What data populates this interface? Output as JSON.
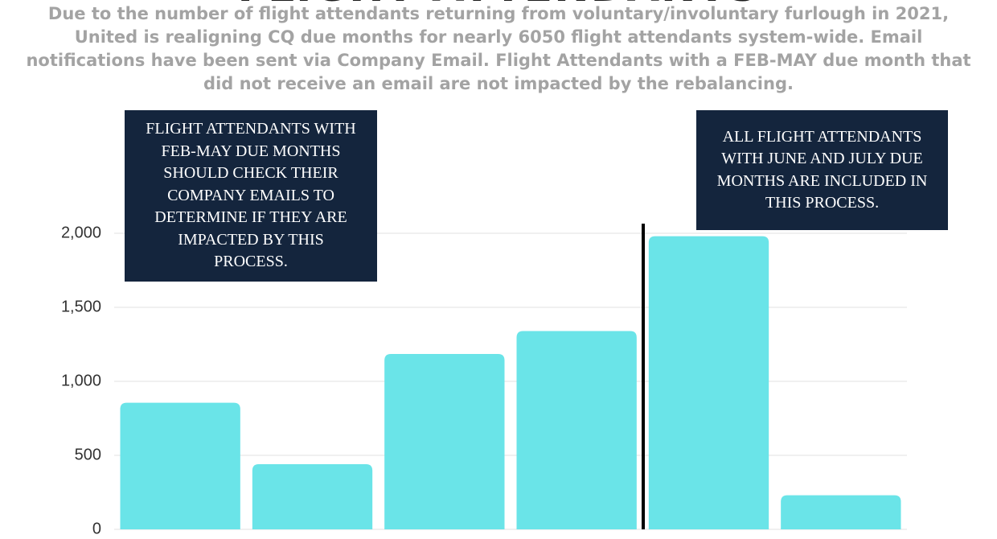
{
  "chart_data": {
    "type": "bar",
    "title": "FLIGHT ATTENDANTS",
    "subtitle": "Due to the number of flight attendants returning from voluntary/involuntary furlough in 2021, United is realigning CQ due months for nearly 6050 flight attendants system-wide. Email notifications have been sent via Company Email. Flight Attendants with a FEB-MAY due month that did not receive an email are not impacted by the rebalancing.",
    "annotations": [
      "FLIGHT ATTENDANTS WITH FEB-MAY DUE MONTHS SHOULD CHECK THEIR COMPANY EMAILS TO DETERMINE IF THEY ARE IMPACTED BY THIS PROCESS.",
      "ALL FLIGHT ATTENDANTS WITH JUNE AND JULY DUE MONTHS ARE INCLUDED IN THIS PROCESS."
    ],
    "categories": [
      null,
      null,
      null,
      null,
      null,
      null
    ],
    "values": [
      855,
      440,
      1185,
      1340,
      1980,
      230
    ],
    "color": "#6ae4e8",
    "ylim": [
      0,
      2000
    ],
    "yticks": [
      0,
      500,
      {
        "value": 1000,
        "label": "1,000"
      },
      {
        "value": 1500,
        "label": "1,500"
      },
      {
        "value": 2000,
        "label": "2,000"
      }
    ],
    "grid": true
  }
}
